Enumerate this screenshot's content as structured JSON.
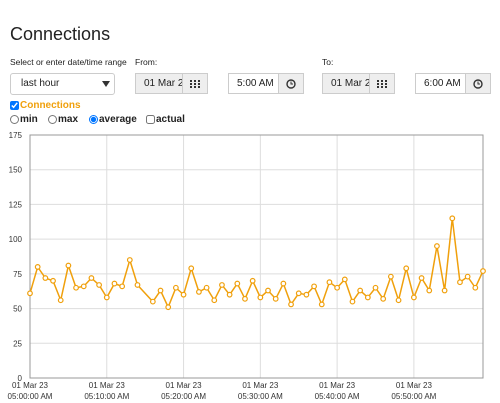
{
  "header": {
    "title": "Connections"
  },
  "range": {
    "label": "Select or enter date/time range",
    "selected": "last hour"
  },
  "from": {
    "label": "From:",
    "date": "01 Mar 2",
    "time": "5:00 AM"
  },
  "to": {
    "label": "To:",
    "date": "01 Mar 2",
    "time": "6:00 AM"
  },
  "series_toggle": {
    "label": "Connections",
    "checked": true
  },
  "modes": [
    {
      "label": "min",
      "kind": "radio",
      "checked": false
    },
    {
      "label": "max",
      "kind": "radio",
      "checked": false
    },
    {
      "label": "average",
      "kind": "radio",
      "checked": true
    },
    {
      "label": "actual",
      "kind": "checkbox",
      "checked": false
    }
  ],
  "chart_data": {
    "type": "line",
    "x": [
      "2023-03-01T05:00",
      "2023-03-01T05:01",
      "2023-03-01T05:02",
      "2023-03-01T05:03",
      "2023-03-01T05:04",
      "2023-03-01T05:05",
      "2023-03-01T05:06",
      "2023-03-01T05:07",
      "2023-03-01T05:08",
      "2023-03-01T05:09",
      "2023-03-01T05:10",
      "2023-03-01T05:11",
      "2023-03-01T05:12",
      "2023-03-01T05:13",
      "2023-03-01T05:14",
      "2023-03-01T05:16",
      "2023-03-01T05:17",
      "2023-03-01T05:18",
      "2023-03-01T05:19",
      "2023-03-01T05:20",
      "2023-03-01T05:21",
      "2023-03-01T05:22",
      "2023-03-01T05:23",
      "2023-03-01T05:24",
      "2023-03-01T05:25",
      "2023-03-01T05:26",
      "2023-03-01T05:27",
      "2023-03-01T05:28",
      "2023-03-01T05:29",
      "2023-03-01T05:30",
      "2023-03-01T05:31",
      "2023-03-01T05:32",
      "2023-03-01T05:33",
      "2023-03-01T05:34",
      "2023-03-01T05:35",
      "2023-03-01T05:36",
      "2023-03-01T05:37",
      "2023-03-01T05:38",
      "2023-03-01T05:39",
      "2023-03-01T05:40",
      "2023-03-01T05:41",
      "2023-03-01T05:42",
      "2023-03-01T05:43",
      "2023-03-01T05:44",
      "2023-03-01T05:45",
      "2023-03-01T05:46",
      "2023-03-01T05:47",
      "2023-03-01T05:48",
      "2023-03-01T05:49",
      "2023-03-01T05:50",
      "2023-03-01T05:51",
      "2023-03-01T05:52",
      "2023-03-01T05:53",
      "2023-03-01T05:54",
      "2023-03-01T05:55",
      "2023-03-01T05:56",
      "2023-03-01T05:57",
      "2023-03-01T05:58",
      "2023-03-01T05:59"
    ],
    "series": [
      {
        "name": "Connections",
        "color": "#f0a00c",
        "values": [
          61,
          80,
          72,
          70,
          56,
          81,
          65,
          66,
          72,
          67,
          58,
          68,
          66,
          85,
          67,
          55,
          63,
          51,
          65,
          60,
          79,
          62,
          65,
          56,
          67,
          60,
          68,
          57,
          70,
          58,
          63,
          57,
          68,
          53,
          61,
          60,
          66,
          53,
          69,
          65,
          71,
          55,
          63,
          58,
          65,
          57,
          73,
          56,
          79,
          58,
          72,
          63,
          95,
          63,
          115,
          69,
          73,
          65,
          77
        ]
      }
    ],
    "xlim": [
      "2023-03-01T05:00",
      "2023-03-01T05:59"
    ],
    "xticks": [
      {
        "value": "2023-03-01T05:00",
        "label": [
          "01 Mar 23",
          "05:00:00 AM"
        ]
      },
      {
        "value": "2023-03-01T05:10",
        "label": [
          "01 Mar 23",
          "05:10:00 AM"
        ]
      },
      {
        "value": "2023-03-01T05:20",
        "label": [
          "01 Mar 23",
          "05:20:00 AM"
        ]
      },
      {
        "value": "2023-03-01T05:30",
        "label": [
          "01 Mar 23",
          "05:30:00 AM"
        ]
      },
      {
        "value": "2023-03-01T05:40",
        "label": [
          "01 Mar 23",
          "05:40:00 AM"
        ]
      },
      {
        "value": "2023-03-01T05:50",
        "label": [
          "01 Mar 23",
          "05:50:00 AM"
        ]
      }
    ],
    "ylim": [
      0,
      175
    ],
    "yticks": [
      0,
      25,
      50,
      75,
      100,
      125,
      150,
      175
    ],
    "grid": true
  }
}
